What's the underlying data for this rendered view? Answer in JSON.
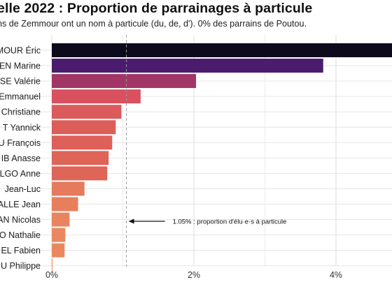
{
  "title": "elle 2022 : Proportion de parrainages à particule",
  "subtitle": "ns de Zemmour ont un nom à particule (du, de, d'). 0% des parrains de Poutou.",
  "chart_data": {
    "type": "bar",
    "orientation": "horizontal",
    "categories": [
      "MOUR Éric",
      "EN Marine",
      "SE Valérie",
      "Emmanuel",
      "Christiane",
      "T Yannick",
      "U François",
      "IB Anasse",
      "LGO Anne",
      "Jean-Luc",
      "ALLE Jean",
      "AN Nicolas",
      "O Nathalie",
      "EL Fabien",
      "U Philippe"
    ],
    "values": [
      5.0,
      3.82,
      2.03,
      1.25,
      0.98,
      0.9,
      0.85,
      0.8,
      0.78,
      0.46,
      0.37,
      0.25,
      0.19,
      0.18,
      0.01
    ],
    "bar_colors": [
      "#0d0a1c",
      "#4b1c6e",
      "#a03566",
      "#d9515f",
      "#db5a5b",
      "#dc5e5a",
      "#dd6059",
      "#de6457",
      "#de6557",
      "#e57a5c",
      "#e77f5d",
      "#e8845f",
      "#e98860",
      "#e98860",
      "#ea8a61"
    ],
    "xlim": [
      0,
      5
    ],
    "xticks": [
      0,
      2,
      4
    ],
    "xtick_labels": [
      "0%",
      "2%",
      "4%"
    ],
    "grid": true,
    "reference_line": {
      "value": 1.05,
      "label": "1.05% : proportion d'élu·e·s à particule"
    }
  }
}
